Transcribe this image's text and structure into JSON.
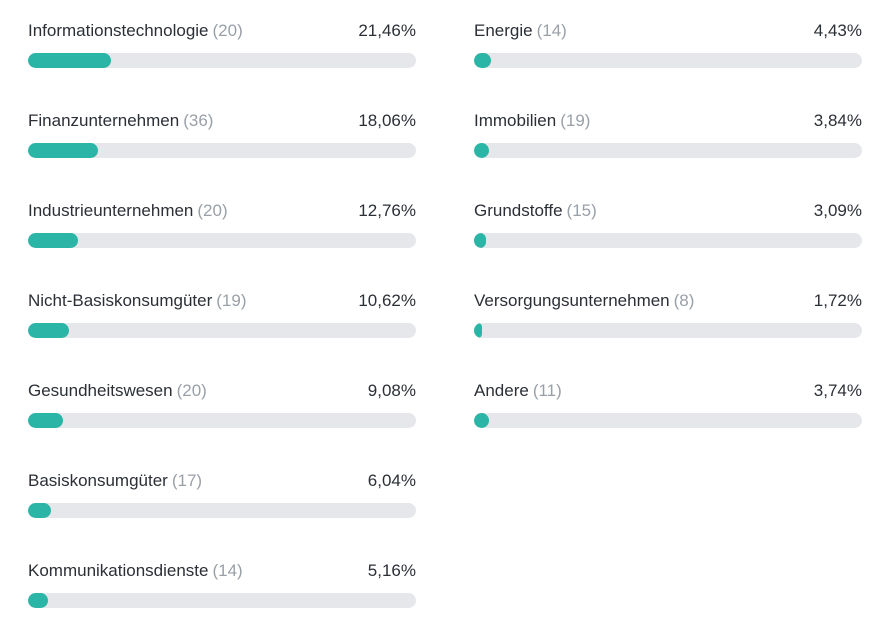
{
  "chart_data": {
    "type": "bar",
    "orientation": "horizontal",
    "bar_color": "#2bb5a7",
    "track_color": "#e6e7ea",
    "xlim": [
      0,
      100
    ],
    "columns": [
      [
        {
          "label": "Informationstechnologie",
          "count": "(20)",
          "percent_text": "21,46%",
          "value": 21.46
        },
        {
          "label": "Finanzunternehmen",
          "count": "(36)",
          "percent_text": "18,06%",
          "value": 18.06
        },
        {
          "label": "Industrieunternehmen",
          "count": "(20)",
          "percent_text": "12,76%",
          "value": 12.76
        },
        {
          "label": "Nicht-Basiskonsumgüter",
          "count": "(19)",
          "percent_text": "10,62%",
          "value": 10.62
        },
        {
          "label": "Gesundheitswesen",
          "count": "(20)",
          "percent_text": "9,08%",
          "value": 9.08
        },
        {
          "label": "Basiskonsumgüter",
          "count": "(17)",
          "percent_text": "6,04%",
          "value": 6.04
        },
        {
          "label": "Kommunikationsdienste",
          "count": "(14)",
          "percent_text": "5,16%",
          "value": 5.16
        }
      ],
      [
        {
          "label": "Energie",
          "count": "(14)",
          "percent_text": "4,43%",
          "value": 4.43
        },
        {
          "label": "Immobilien",
          "count": "(19)",
          "percent_text": "3,84%",
          "value": 3.84
        },
        {
          "label": "Grundstoffe",
          "count": "(15)",
          "percent_text": "3,09%",
          "value": 3.09
        },
        {
          "label": "Versorgungsunternehmen",
          "count": "(8)",
          "percent_text": "1,72%",
          "value": 1.72
        },
        {
          "label": "Andere",
          "count": "(11)",
          "percent_text": "3,74%",
          "value": 3.74
        }
      ]
    ]
  }
}
